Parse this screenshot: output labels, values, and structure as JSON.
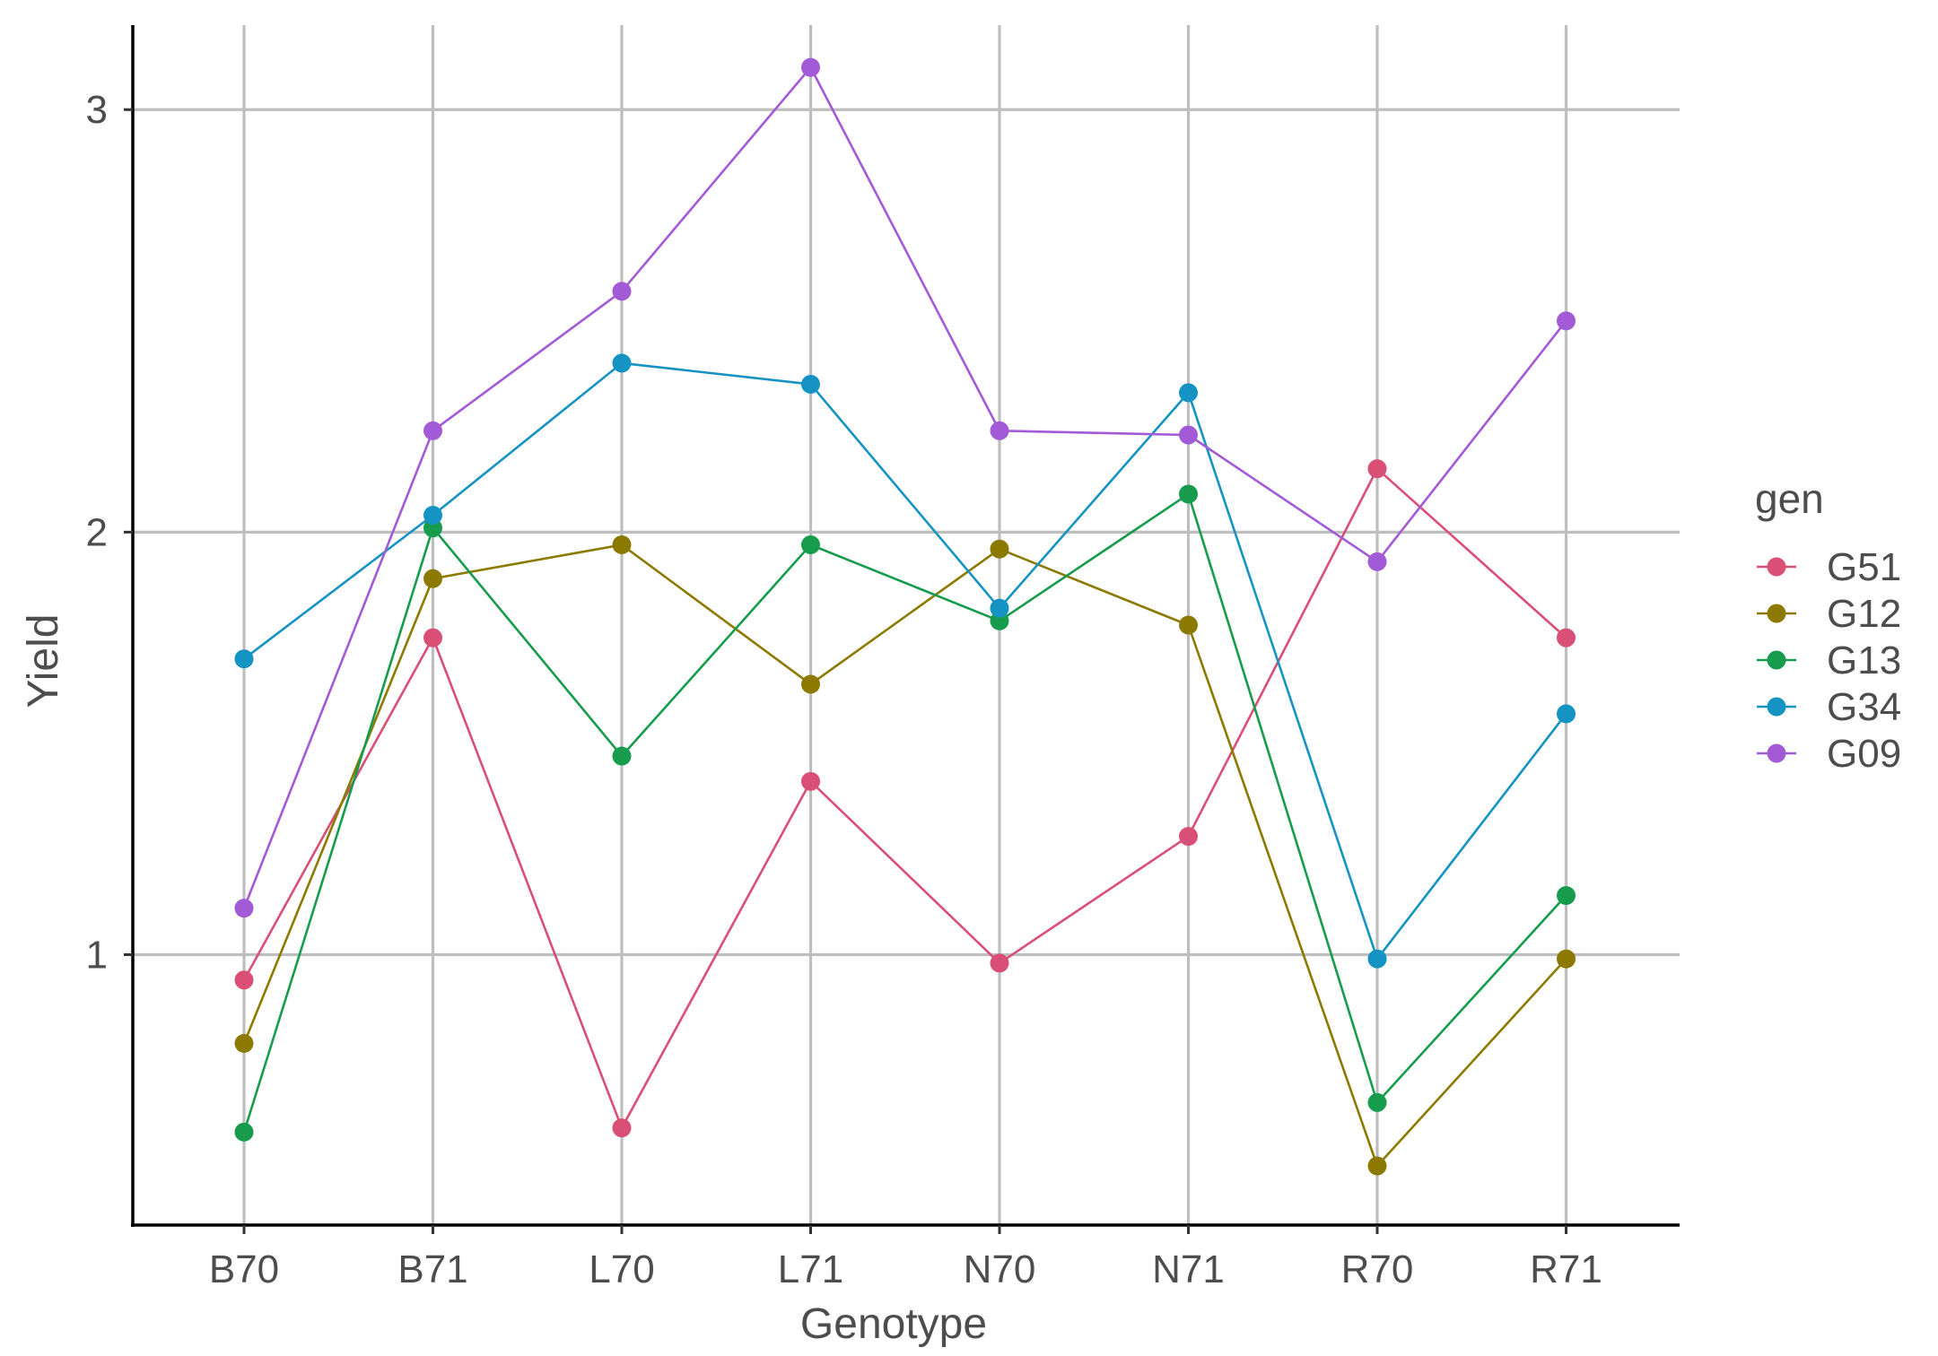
{
  "chart_data": {
    "type": "line",
    "xlabel": "Genotype",
    "ylabel": "Yield",
    "categories": [
      "B70",
      "B71",
      "L70",
      "L71",
      "N70",
      "N71",
      "R70",
      "R71"
    ],
    "ylim": [
      0.36,
      3.2
    ],
    "yticks": [
      1,
      2,
      3
    ],
    "ytick_labels": [
      "1",
      "2",
      "3"
    ],
    "grid": true,
    "legend": {
      "title": "gen",
      "position": "right"
    },
    "series": [
      {
        "name": "G51",
        "color": "#d94f75",
        "values": [
          0.94,
          1.75,
          0.59,
          1.41,
          0.98,
          1.28,
          2.15,
          1.75
        ]
      },
      {
        "name": "G12",
        "color": "#8c7a00",
        "values": [
          0.79,
          1.89,
          1.97,
          1.64,
          1.96,
          1.78,
          0.5,
          0.99
        ]
      },
      {
        "name": "G13",
        "color": "#179c4d",
        "values": [
          0.58,
          2.01,
          1.47,
          1.97,
          1.79,
          2.09,
          0.65,
          1.14
        ]
      },
      {
        "name": "G34",
        "color": "#1593c2",
        "values": [
          1.7,
          2.04,
          2.4,
          2.35,
          1.82,
          2.33,
          0.99,
          1.57
        ]
      },
      {
        "name": "G09",
        "color": "#a35ad6",
        "values": [
          1.11,
          2.24,
          2.57,
          3.1,
          2.24,
          2.23,
          1.93,
          2.5
        ]
      }
    ]
  }
}
